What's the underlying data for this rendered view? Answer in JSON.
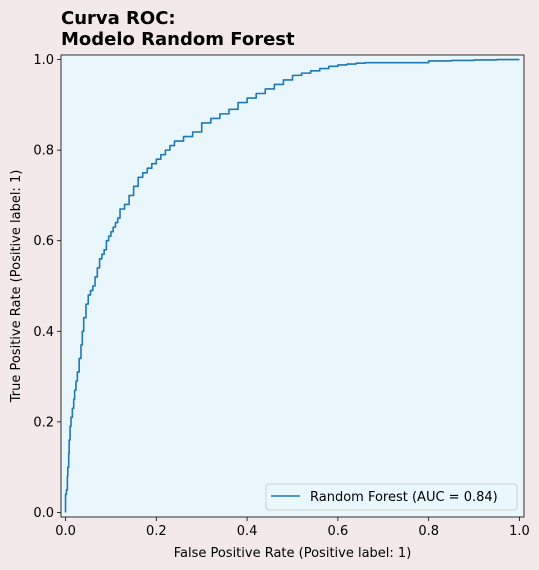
{
  "colors": {
    "figure_background": "#f3e8ea",
    "axes_background": "#e9f7fc",
    "line": "#1f77b4"
  },
  "chart_data": {
    "type": "line",
    "title": [
      "Curva ROC:",
      "Modelo Random Forest"
    ],
    "xlabel": "False Positive Rate (Positive label: 1)",
    "ylabel": "True Positive Rate (Positive label: 1)",
    "xlim": [
      -0.01,
      1.01
    ],
    "ylim": [
      -0.01,
      1.01
    ],
    "xticks": [
      0.0,
      0.2,
      0.4,
      0.6,
      0.8,
      1.0
    ],
    "yticks": [
      0.0,
      0.2,
      0.4,
      0.6,
      0.8,
      1.0
    ],
    "tick_labels": [
      "0.0",
      "0.2",
      "0.4",
      "0.6",
      "0.8",
      "1.0"
    ],
    "grid": false,
    "legend": {
      "position": "lower-right"
    },
    "series": [
      {
        "name": "Random Forest (AUC = 0.84)",
        "color": "#1f77b4",
        "x": [
          0,
          0.0,
          0.002,
          0.004,
          0.005,
          0.007,
          0.008,
          0.01,
          0.012,
          0.015,
          0.018,
          0.02,
          0.023,
          0.026,
          0.03,
          0.034,
          0.037,
          0.04,
          0.045,
          0.05,
          0.055,
          0.06,
          0.065,
          0.07,
          0.075,
          0.08,
          0.085,
          0.09,
          0.095,
          0.1,
          0.105,
          0.11,
          0.115,
          0.12,
          0.13,
          0.14,
          0.15,
          0.16,
          0.17,
          0.18,
          0.19,
          0.2,
          0.21,
          0.22,
          0.23,
          0.24,
          0.26,
          0.28,
          0.3,
          0.32,
          0.34,
          0.36,
          0.38,
          0.4,
          0.42,
          0.44,
          0.46,
          0.48,
          0.5,
          0.52,
          0.54,
          0.56,
          0.58,
          0.6,
          0.62,
          0.64,
          0.66,
          0.68,
          0.7,
          0.72,
          0.76,
          0.8,
          0.81,
          0.85,
          0.9,
          0.95,
          0.98,
          1.0
        ],
        "y": [
          0,
          0.02,
          0.04,
          0.05,
          0.08,
          0.1,
          0.13,
          0.16,
          0.19,
          0.21,
          0.23,
          0.25,
          0.27,
          0.29,
          0.31,
          0.34,
          0.37,
          0.4,
          0.43,
          0.46,
          0.48,
          0.49,
          0.5,
          0.52,
          0.54,
          0.56,
          0.57,
          0.58,
          0.6,
          0.61,
          0.62,
          0.63,
          0.64,
          0.65,
          0.67,
          0.68,
          0.7,
          0.72,
          0.74,
          0.75,
          0.76,
          0.77,
          0.78,
          0.79,
          0.8,
          0.81,
          0.82,
          0.83,
          0.84,
          0.86,
          0.87,
          0.88,
          0.89,
          0.905,
          0.915,
          0.925,
          0.935,
          0.945,
          0.955,
          0.965,
          0.97,
          0.975,
          0.98,
          0.985,
          0.988,
          0.99,
          0.992,
          0.993,
          0.993,
          0.993,
          0.993,
          0.993,
          0.997,
          0.997,
          0.998,
          0.999,
          1.0,
          1.0
        ]
      }
    ]
  }
}
